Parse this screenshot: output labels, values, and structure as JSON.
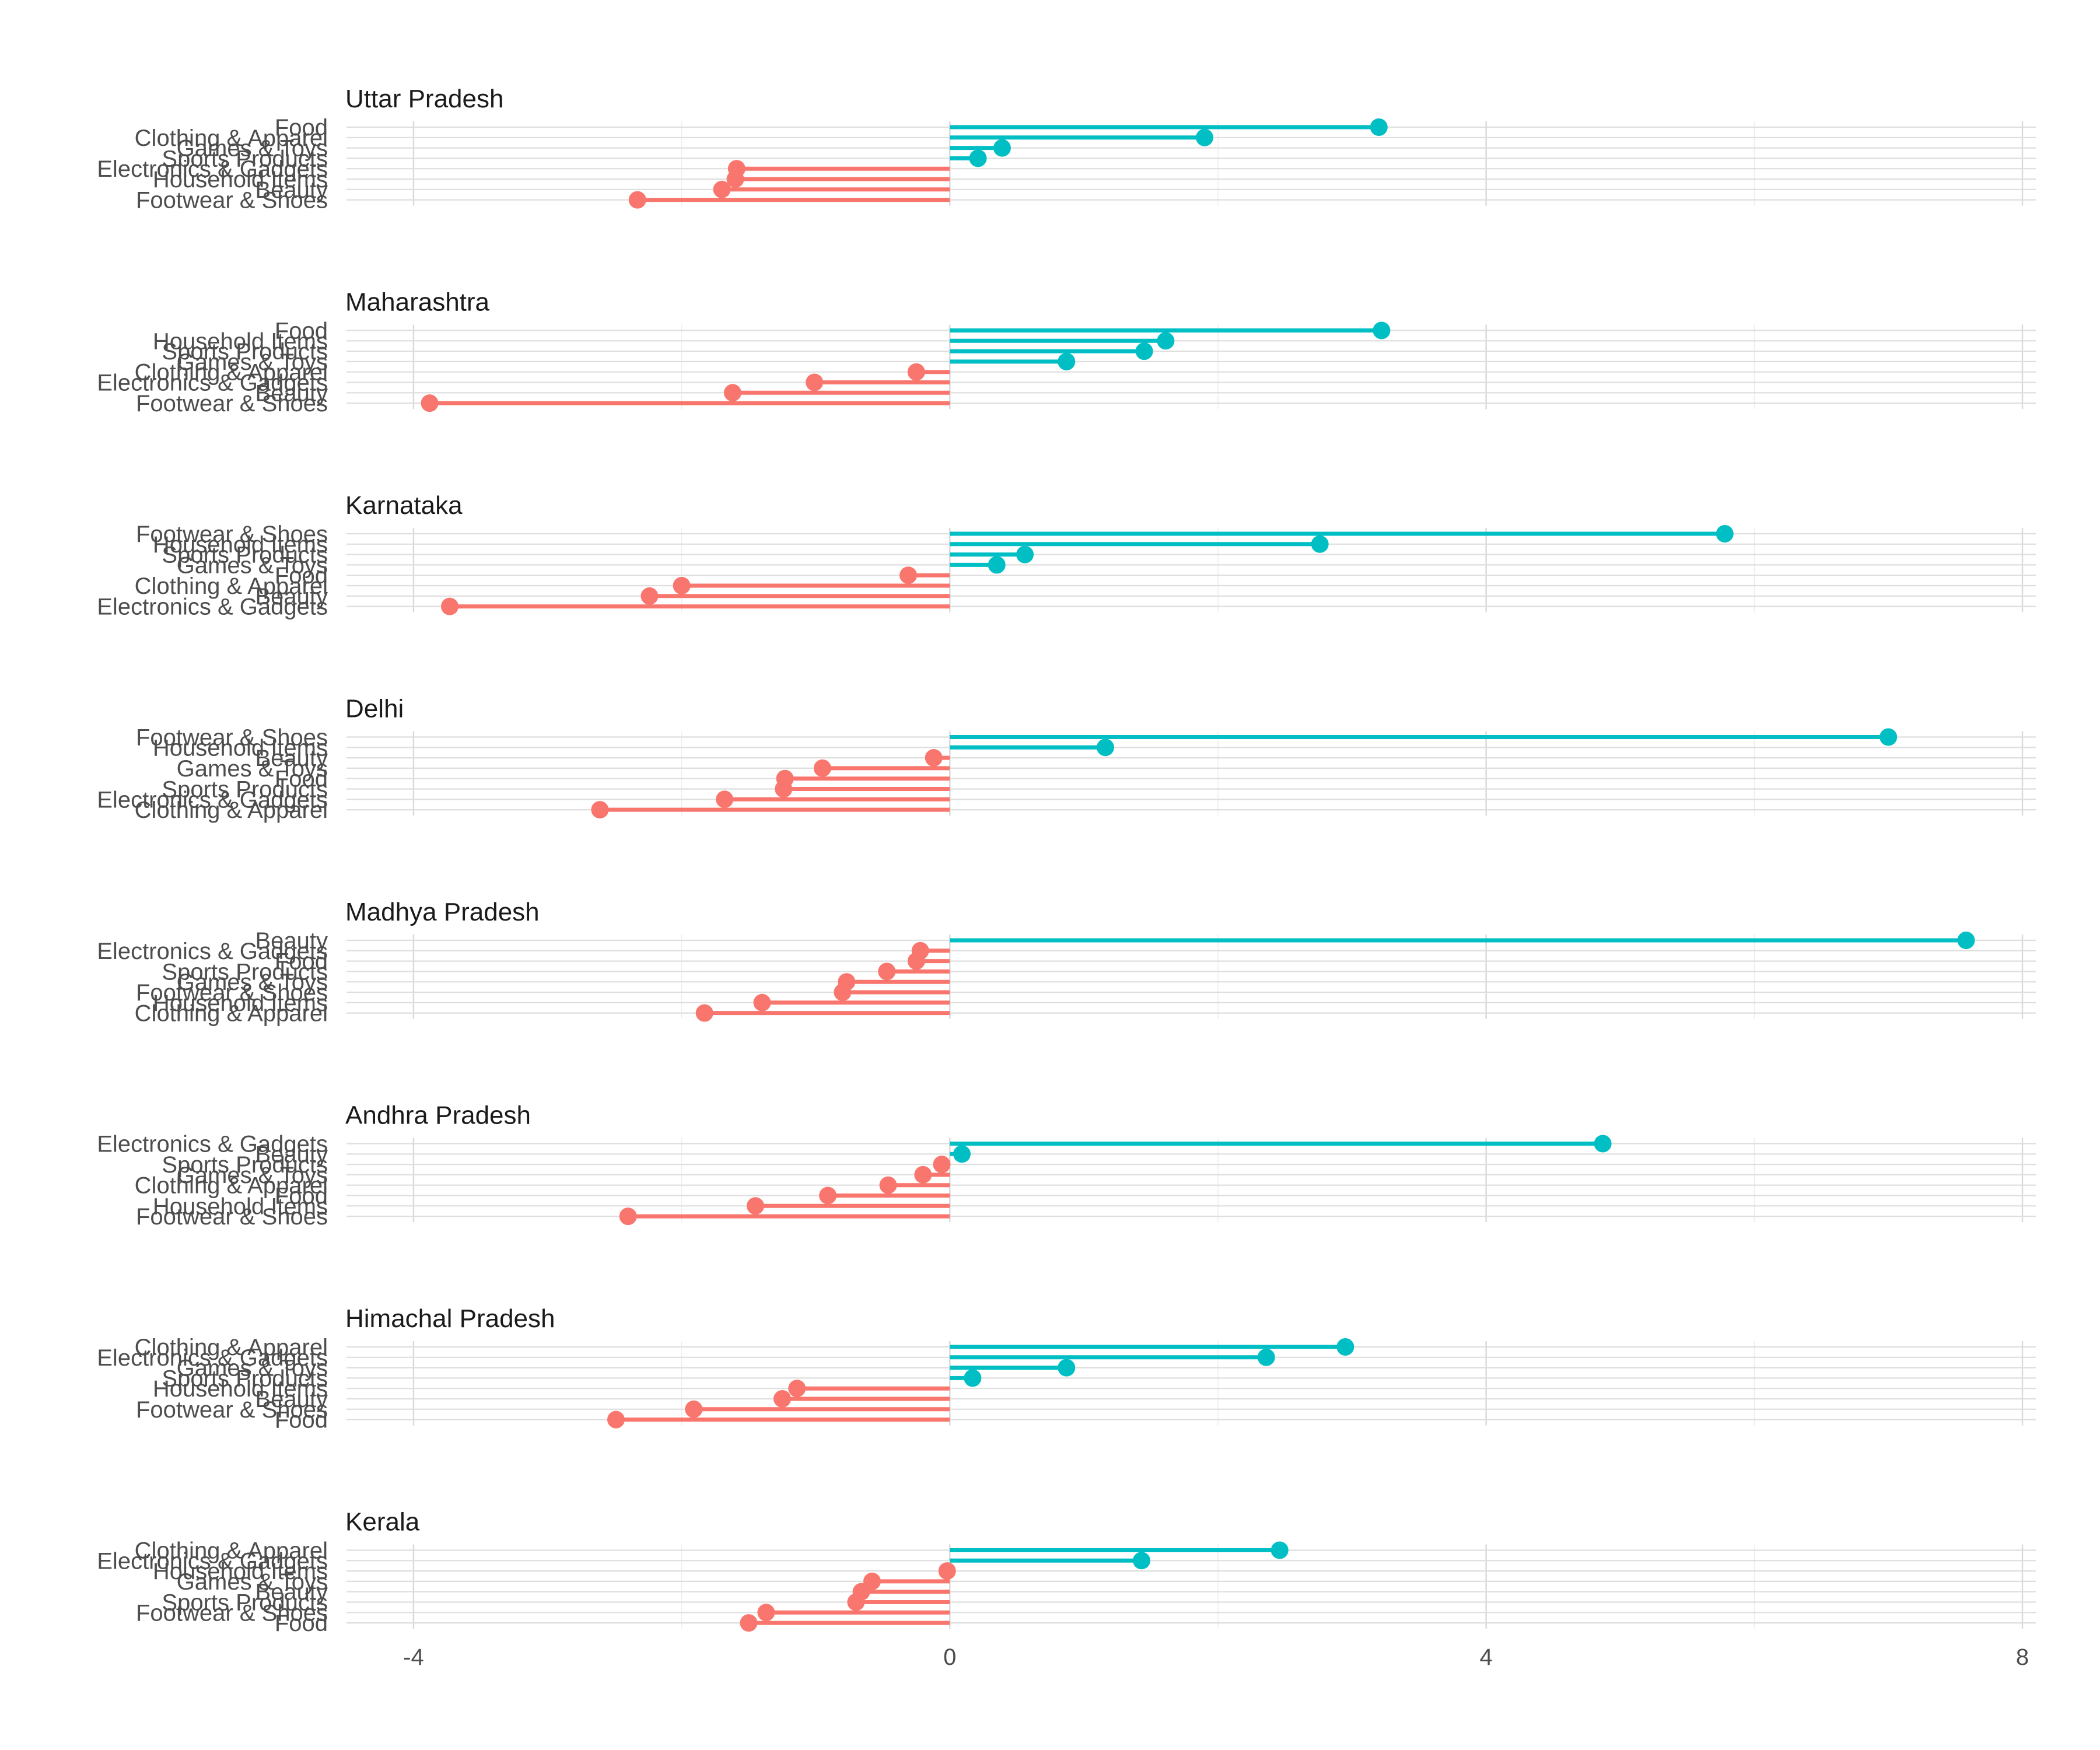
{
  "chart_data": {
    "type": "lollipop",
    "title": "",
    "xlabel": "",
    "ylabel": "",
    "xlim": [
      -4.5,
      8.1
    ],
    "x_ticks": [
      -4,
      0,
      4,
      8
    ],
    "x_tick_labels": [
      "-4",
      "0",
      "4",
      "8"
    ],
    "colors": {
      "positive": "#00BFC4",
      "negative": "#F8766D"
    },
    "grid": true,
    "legend": "none",
    "panels": [
      {
        "name": "Uttar Pradesh",
        "categories": [
          "Food",
          "Clothing & Apparel",
          "Games & Toys",
          "Sports Products",
          "Electronics & Gadgets",
          "Household Items",
          "Beauty",
          "Footwear & Shoes"
        ],
        "values": [
          3.2,
          1.9,
          0.39,
          0.21,
          -1.59,
          -1.6,
          -1.7,
          -2.33
        ]
      },
      {
        "name": "Maharashtra",
        "categories": [
          "Food",
          "Household Items",
          "Sports Products",
          "Games & Toys",
          "Clothing & Apparel",
          "Electronics & Gadgets",
          "Beauty",
          "Footwear & Shoes"
        ],
        "values": [
          3.22,
          1.61,
          1.45,
          0.87,
          -0.25,
          -1.01,
          -1.62,
          -3.88
        ]
      },
      {
        "name": "Karnataka",
        "categories": [
          "Footwear & Shoes",
          "Household Items",
          "Sports Products",
          "Games & Toys",
          "Food",
          "Clothing & Apparel",
          "Beauty",
          "Electronics & Gadgets"
        ],
        "values": [
          5.78,
          2.76,
          0.56,
          0.35,
          -0.31,
          -2.0,
          -2.24,
          -3.73
        ]
      },
      {
        "name": "Delhi",
        "categories": [
          "Footwear & Shoes",
          "Household Items",
          "Beauty",
          "Games & Toys",
          "Food",
          "Sports Products",
          "Electronics & Gadgets",
          "Clothing & Apparel"
        ],
        "values": [
          7.0,
          1.16,
          -0.12,
          -0.95,
          -1.23,
          -1.24,
          -1.68,
          -2.61
        ]
      },
      {
        "name": "Madhya Pradesh",
        "categories": [
          "Beauty",
          "Electronics & Gadgets",
          "Food",
          "Sports Products",
          "Games & Toys",
          "Footwear & Shoes",
          "Household Items",
          "Clothing & Apparel"
        ],
        "values": [
          7.58,
          -0.22,
          -0.25,
          -0.47,
          -0.77,
          -0.8,
          -1.4,
          -1.83
        ]
      },
      {
        "name": "Andhra Pradesh",
        "categories": [
          "Electronics & Gadgets",
          "Beauty",
          "Sports Products",
          "Games & Toys",
          "Clothing & Apparel",
          "Food",
          "Household Items",
          "Footwear & Shoes"
        ],
        "values": [
          4.87,
          0.09,
          -0.06,
          -0.2,
          -0.46,
          -0.91,
          -1.45,
          -2.4
        ]
      },
      {
        "name": "Himachal Pradesh",
        "categories": [
          "Clothing & Apparel",
          "Electronics & Gadgets",
          "Games & Toys",
          "Sports Products",
          "Household Items",
          "Beauty",
          "Footwear & Shoes",
          "Food"
        ],
        "values": [
          2.95,
          2.36,
          0.87,
          0.17,
          -1.14,
          -1.25,
          -1.91,
          -2.49
        ]
      },
      {
        "name": "Kerala",
        "categories": [
          "Clothing & Apparel",
          "Electronics & Gadgets",
          "Household Items",
          "Games & Toys",
          "Beauty",
          "Sports Products",
          "Footwear & Shoes",
          "Food"
        ],
        "values": [
          2.46,
          1.43,
          -0.02,
          -0.58,
          -0.66,
          -0.7,
          -1.37,
          -1.5
        ]
      }
    ]
  }
}
